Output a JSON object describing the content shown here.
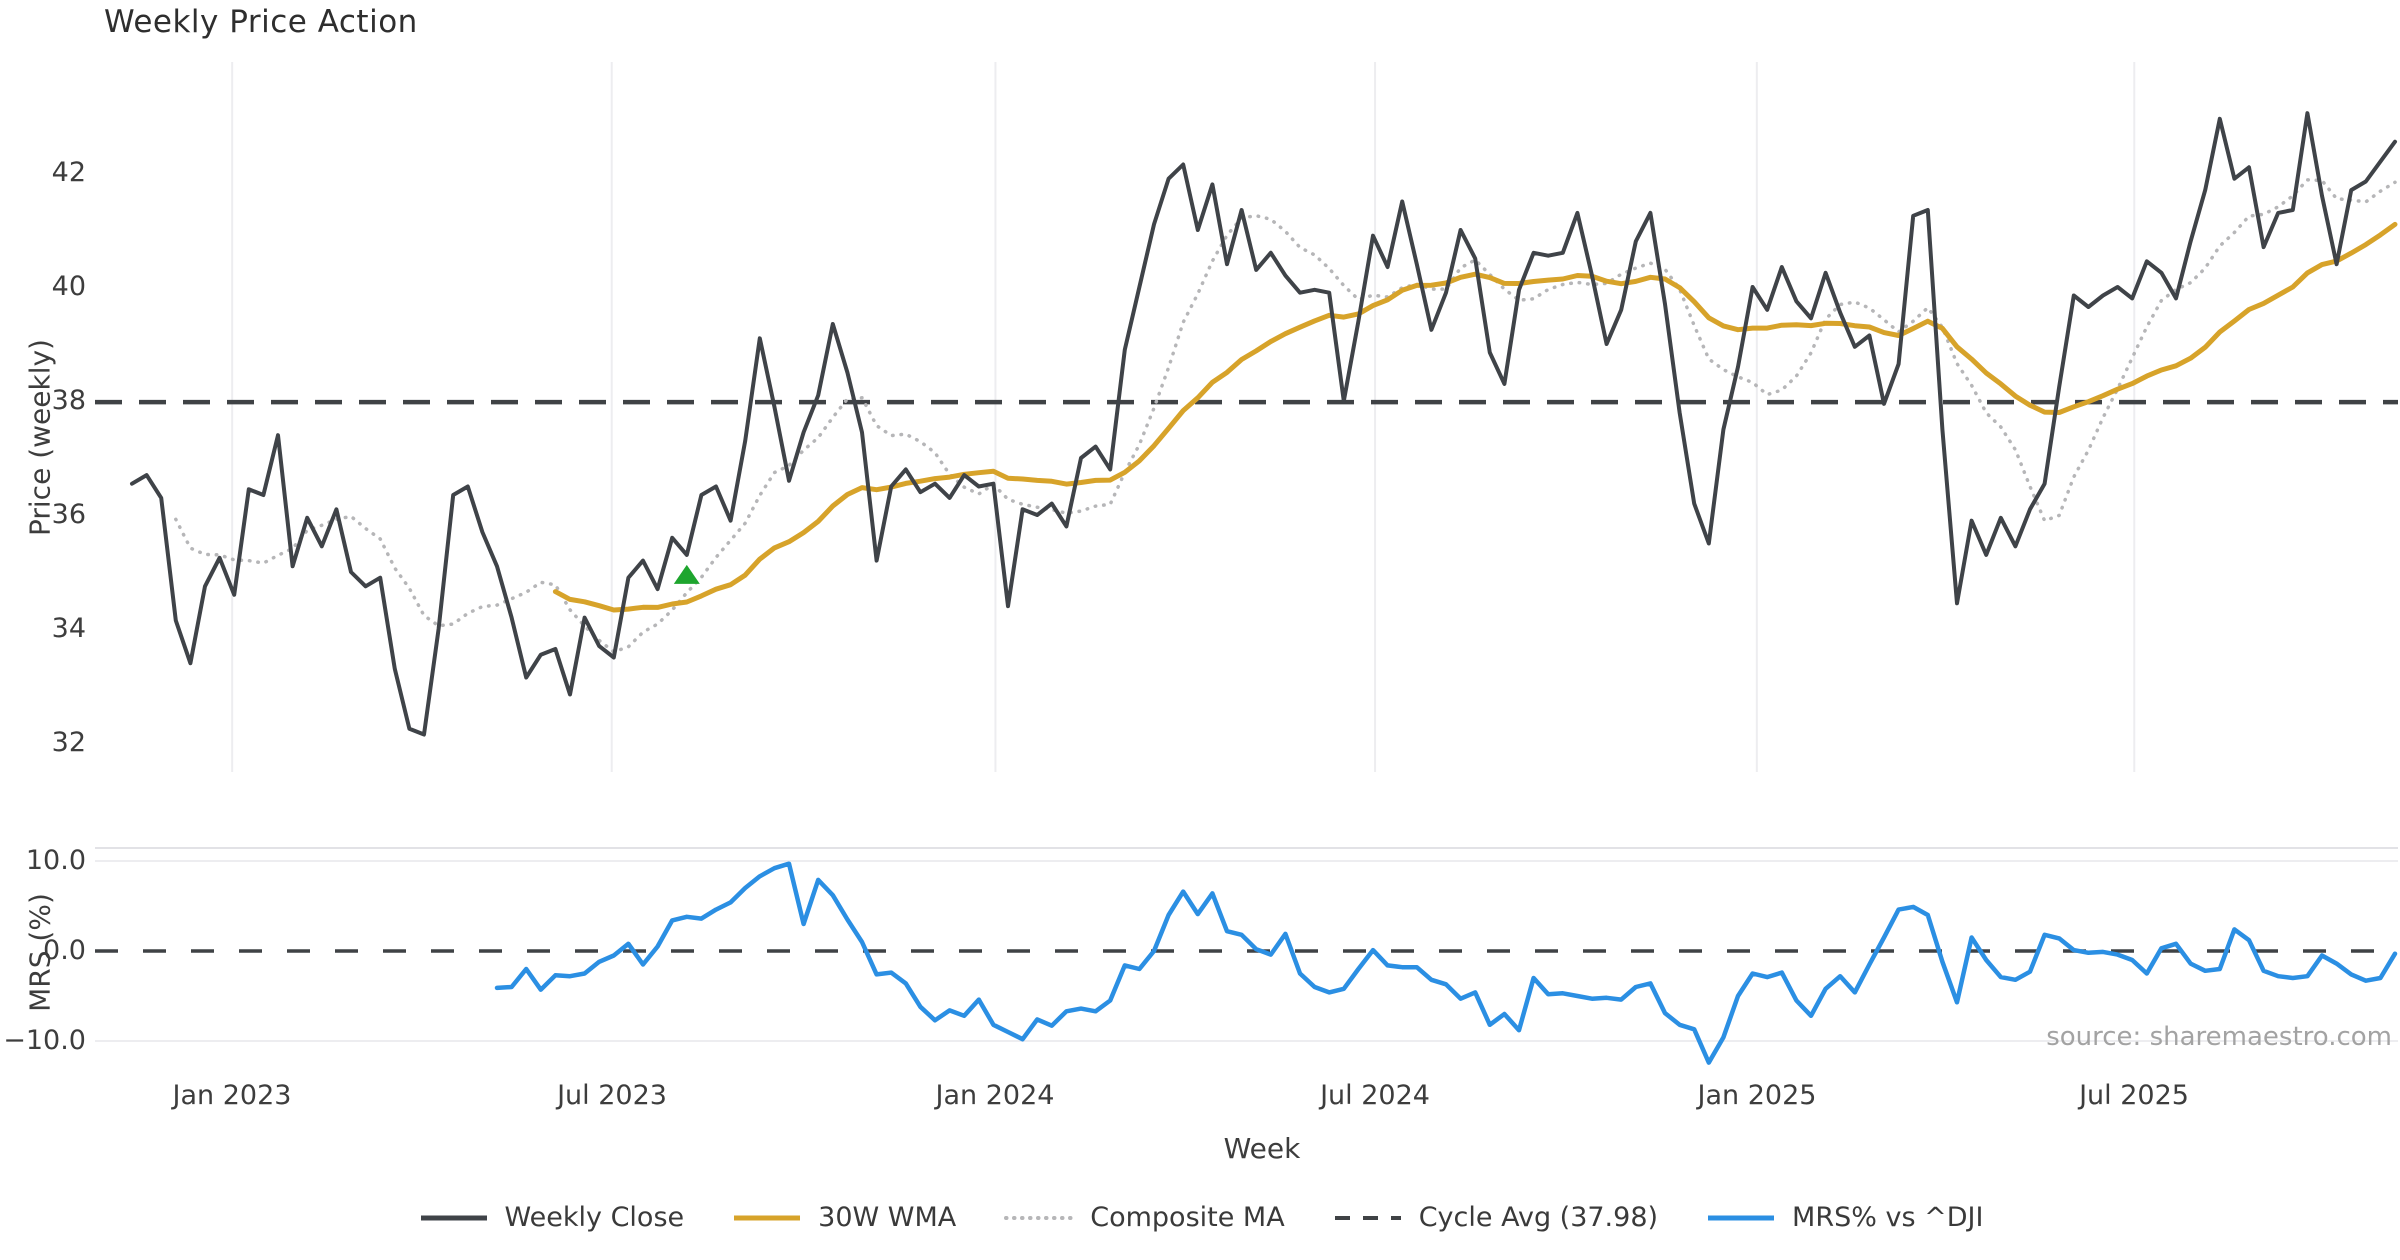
{
  "title": "Weekly Price Action",
  "source_note": "source: sharemaestro.com",
  "colors": {
    "weekly_close": "#3f4348",
    "wma_30w": "#d7a32a",
    "composite_ma": "#b6b6b8",
    "cycle_avg": "#3f4245",
    "mrs_line": "#2b8fe3",
    "signal_marker": "#1ea52e",
    "grid": "#ededf0",
    "spine": "#e2e2e6",
    "text": "#3d3d3d",
    "muted_text": "#a3a3a3"
  },
  "legend": {
    "items": [
      {
        "id": "weekly-close",
        "label": "Weekly Close",
        "style": "solid-dark"
      },
      {
        "id": "wma-30w",
        "label": "30W WMA",
        "style": "solid-gold"
      },
      {
        "id": "composite-ma",
        "label": "Composite MA",
        "style": "dotted-gray"
      },
      {
        "id": "cycle-avg",
        "label": "Cycle Avg (37.98)",
        "style": "dashed-dark"
      },
      {
        "id": "mrs",
        "label": "MRS% vs ^DJI",
        "style": "solid-blue"
      }
    ]
  },
  "x_axis": {
    "label": "Week",
    "ticks": [
      {
        "label": "Jan 2023",
        "week": 6.86
      },
      {
        "label": "Jul 2023",
        "week": 32.86
      },
      {
        "label": "Jan 2024",
        "week": 59.14
      },
      {
        "label": "Jul 2024",
        "week": 85.14
      },
      {
        "label": "Jan 2025",
        "week": 111.29
      },
      {
        "label": "Jul 2025",
        "week": 137.14
      }
    ]
  },
  "price_panel": {
    "ylabel": "Price (weekly)",
    "yticks": [
      {
        "label": "42",
        "value": 42
      },
      {
        "label": "40",
        "value": 40
      },
      {
        "label": "38",
        "value": 38
      },
      {
        "label": "36",
        "value": 36
      },
      {
        "label": "34",
        "value": 34
      },
      {
        "label": "32",
        "value": 32
      }
    ],
    "cycle_avg_value": 37.98
  },
  "mrs_panel": {
    "ylabel": "MRS (%)",
    "yticks": [
      {
        "label": "10.0",
        "value": 10
      },
      {
        "label": "0.0",
        "value": 0
      },
      {
        "label": "−10.0",
        "value": -10
      }
    ],
    "zero_line": 0
  },
  "chart_data": [
    {
      "type": "line",
      "panel": "price",
      "title": "Weekly Price Action",
      "xlabel": "Week",
      "ylabel": "Price (weekly)",
      "x_unit": "week_index (0 = first plotted week, ~mid-Nov 2022; 14.6px/week)",
      "ylim": [
        31.5,
        43.6
      ],
      "grid": "vertical semi-annual gridlines only",
      "series": [
        {
          "name": "Weekly Close",
          "color_key": "weekly_close",
          "start_week": 0,
          "values": [
            36.55,
            36.7,
            36.3,
            34.15,
            33.4,
            34.75,
            35.25,
            34.6,
            36.45,
            36.35,
            37.4,
            35.1,
            35.95,
            35.45,
            36.1,
            35.0,
            34.75,
            34.9,
            33.3,
            32.25,
            32.15,
            34.0,
            36.35,
            36.5,
            35.7,
            35.1,
            34.2,
            33.15,
            33.55,
            33.65,
            32.85,
            34.2,
            33.7,
            33.5,
            34.9,
            35.2,
            34.7,
            35.6,
            35.3,
            36.35,
            36.5,
            35.9,
            37.3,
            39.1,
            37.9,
            36.6,
            37.45,
            38.1,
            39.35,
            38.5,
            37.45,
            35.2,
            36.5,
            36.8,
            36.4,
            36.55,
            36.3,
            36.7,
            36.5,
            36.55,
            34.4,
            36.1,
            36.0,
            36.2,
            35.8,
            37.0,
            37.2,
            36.8,
            38.9,
            40.0,
            41.1,
            41.9,
            42.15,
            41.0,
            41.8,
            40.4,
            41.35,
            40.3,
            40.6,
            40.2,
            39.9,
            39.95,
            39.9,
            38.0,
            39.4,
            40.9,
            40.35,
            41.5,
            40.4,
            39.25,
            39.9,
            41.0,
            40.5,
            38.85,
            38.3,
            39.95,
            40.6,
            40.55,
            40.6,
            41.3,
            40.2,
            39.0,
            39.6,
            40.8,
            41.3,
            39.7,
            37.8,
            36.2,
            35.5,
            37.5,
            38.6,
            40.0,
            39.6,
            40.35,
            39.75,
            39.45,
            40.25,
            39.55,
            38.95,
            39.15,
            37.95,
            38.65,
            41.25,
            41.35,
            37.5,
            34.45,
            35.9,
            35.3,
            35.95,
            35.45,
            36.1,
            36.55,
            38.25,
            39.85,
            39.65,
            39.85,
            40.0,
            39.8,
            40.45,
            40.25,
            39.8,
            40.8,
            41.7,
            42.95,
            41.9,
            42.1,
            40.7,
            41.3,
            41.35,
            43.05,
            41.6,
            40.4,
            41.7,
            41.85,
            42.2,
            42.55
          ]
        },
        {
          "name": "30W WMA",
          "color_key": "wma_30w",
          "derived": "linear_weighted_ma_of_weekly_close",
          "window": 30,
          "start_week": 29
        },
        {
          "name": "Composite MA",
          "color_key": "composite_ma",
          "derived": "trailing_sma_of_weekly_close",
          "window": 8,
          "min_window": 4,
          "start_week": 3
        },
        {
          "name": "Cycle Avg (37.98)",
          "color_key": "cycle_avg",
          "constant": 37.98,
          "line_style": "dashed"
        }
      ],
      "marker": {
        "shape": "triangle-up",
        "week": 38,
        "price": 34.95,
        "color_key": "signal_marker"
      }
    },
    {
      "type": "line",
      "panel": "mrs",
      "xlabel": "Week",
      "ylabel": "MRS (%)",
      "ylim": [
        -13.5,
        11.5
      ],
      "grid": "horizontal lines at +10 and -10, dashed zero line",
      "series": [
        {
          "name": "MRS% vs ^DJI",
          "color_key": "mrs_line",
          "start_week": 25,
          "values": [
            -4.1,
            -4.0,
            -2.0,
            -4.3,
            -2.7,
            -2.8,
            -2.5,
            -1.2,
            -0.5,
            0.8,
            -1.5,
            0.5,
            3.4,
            3.8,
            3.6,
            4.6,
            5.4,
            7.0,
            8.3,
            9.2,
            9.7,
            3.0,
            7.9,
            6.2,
            3.5,
            1.0,
            -2.6,
            -2.4,
            -3.6,
            -6.2,
            -7.7,
            -6.6,
            -7.2,
            -5.4,
            -8.2,
            -9.0,
            -9.8,
            -7.6,
            -8.3,
            -6.7,
            -6.4,
            -6.7,
            -5.5,
            -1.6,
            -2.0,
            0.0,
            4.0,
            6.6,
            4.1,
            6.4,
            2.2,
            1.8,
            0.2,
            -0.4,
            1.9,
            -2.5,
            -4.0,
            -4.6,
            -4.2,
            -2.0,
            0.1,
            -1.6,
            -1.8,
            -1.8,
            -3.2,
            -3.7,
            -5.3,
            -4.6,
            -8.2,
            -7.0,
            -8.8,
            -3.0,
            -4.8,
            -4.7,
            -5.0,
            -5.3,
            -5.2,
            -5.4,
            -4.0,
            -3.6,
            -6.9,
            -8.2,
            -8.7,
            -12.4,
            -9.6,
            -5.0,
            -2.5,
            -2.9,
            -2.4,
            -5.5,
            -7.2,
            -4.2,
            -2.8,
            -4.6,
            -1.5,
            1.5,
            4.6,
            4.9,
            4.0,
            -1.2,
            -5.7,
            1.5,
            -1.0,
            -2.9,
            -3.2,
            -2.3,
            1.8,
            1.4,
            0.1,
            -0.2,
            -0.1,
            -0.4,
            -1.0,
            -2.5,
            0.3,
            0.8,
            -1.4,
            -2.2,
            -2.0,
            2.4,
            1.2,
            -2.2,
            -2.8,
            -3.0,
            -2.8,
            -0.5,
            -1.4,
            -2.6,
            -3.3,
            -3.0,
            -0.3
          ]
        }
      ]
    }
  ]
}
